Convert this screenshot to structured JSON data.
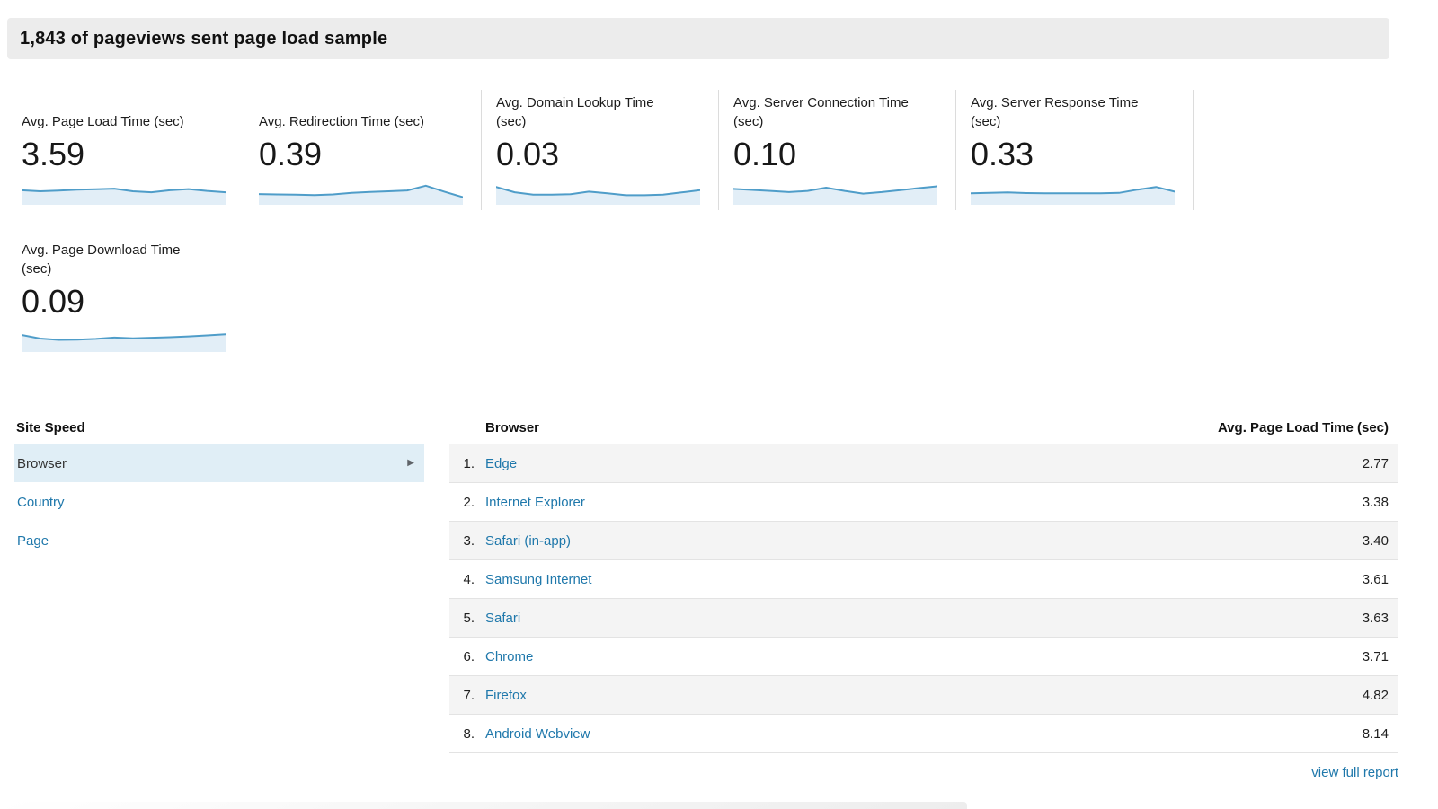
{
  "header": {
    "title": "1,843 of pageviews sent page load sample"
  },
  "metrics": {
    "cards": [
      {
        "label": "Avg. Page Load Time (sec)",
        "value": "3.59",
        "spark": [
          0.55,
          0.5,
          0.53,
          0.58,
          0.6,
          0.63,
          0.5,
          0.45,
          0.55,
          0.61,
          0.52,
          0.45
        ]
      },
      {
        "label": "Avg. Redirection Time (sec)",
        "value": "0.39",
        "spark": [
          0.36,
          0.34,
          0.33,
          0.31,
          0.34,
          0.42,
          0.47,
          0.5,
          0.54,
          0.78,
          0.48,
          0.2
        ]
      },
      {
        "label": "Avg. Domain Lookup Time (sec)",
        "value": "0.03",
        "spark": [
          0.72,
          0.45,
          0.33,
          0.33,
          0.35,
          0.48,
          0.4,
          0.3,
          0.3,
          0.33,
          0.44,
          0.56
        ]
      },
      {
        "label": "Avg. Server Connection Time (sec)",
        "value": "0.10",
        "spark": [
          0.62,
          0.57,
          0.52,
          0.46,
          0.52,
          0.68,
          0.52,
          0.38,
          0.46,
          0.56,
          0.66,
          0.75
        ]
      },
      {
        "label": "Avg. Server Response Time (sec)",
        "value": "0.33",
        "spark": [
          0.4,
          0.42,
          0.44,
          0.41,
          0.4,
          0.4,
          0.4,
          0.4,
          0.42,
          0.58,
          0.72,
          0.48
        ]
      },
      {
        "label": "Avg. Page Download Time (sec)",
        "value": "0.09",
        "spark": [
          0.68,
          0.5,
          0.43,
          0.44,
          0.48,
          0.55,
          0.51,
          0.54,
          0.57,
          0.61,
          0.66,
          0.72
        ]
      }
    ]
  },
  "explorer": {
    "dimension_panel": {
      "title": "Site Speed",
      "items": [
        {
          "label": "Browser",
          "selected": true
        },
        {
          "label": "Country",
          "selected": false
        },
        {
          "label": "Page",
          "selected": false
        }
      ]
    },
    "table": {
      "columns": [
        "Browser",
        "Avg. Page Load Time (sec)"
      ],
      "rows": [
        {
          "rank": "1.",
          "browser": "Edge",
          "value": "2.77"
        },
        {
          "rank": "2.",
          "browser": "Internet Explorer",
          "value": "3.38"
        },
        {
          "rank": "3.",
          "browser": "Safari (in-app)",
          "value": "3.40"
        },
        {
          "rank": "4.",
          "browser": "Samsung Internet",
          "value": "3.61"
        },
        {
          "rank": "5.",
          "browser": "Safari",
          "value": "3.63"
        },
        {
          "rank": "6.",
          "browser": "Chrome",
          "value": "3.71"
        },
        {
          "rank": "7.",
          "browser": "Firefox",
          "value": "4.82"
        },
        {
          "rank": "8.",
          "browser": "Android Webview",
          "value": "8.14"
        }
      ]
    },
    "footer": {
      "view_full_report": "view full report"
    }
  },
  "colors": {
    "banner_bg": "#ececec",
    "link": "#1f78ab",
    "spark_line": "#4f9dc9",
    "spark_fill": "#e2eef7",
    "selected_item_bg": "#e0eef6",
    "row_alt_bg": "#f4f4f4"
  }
}
